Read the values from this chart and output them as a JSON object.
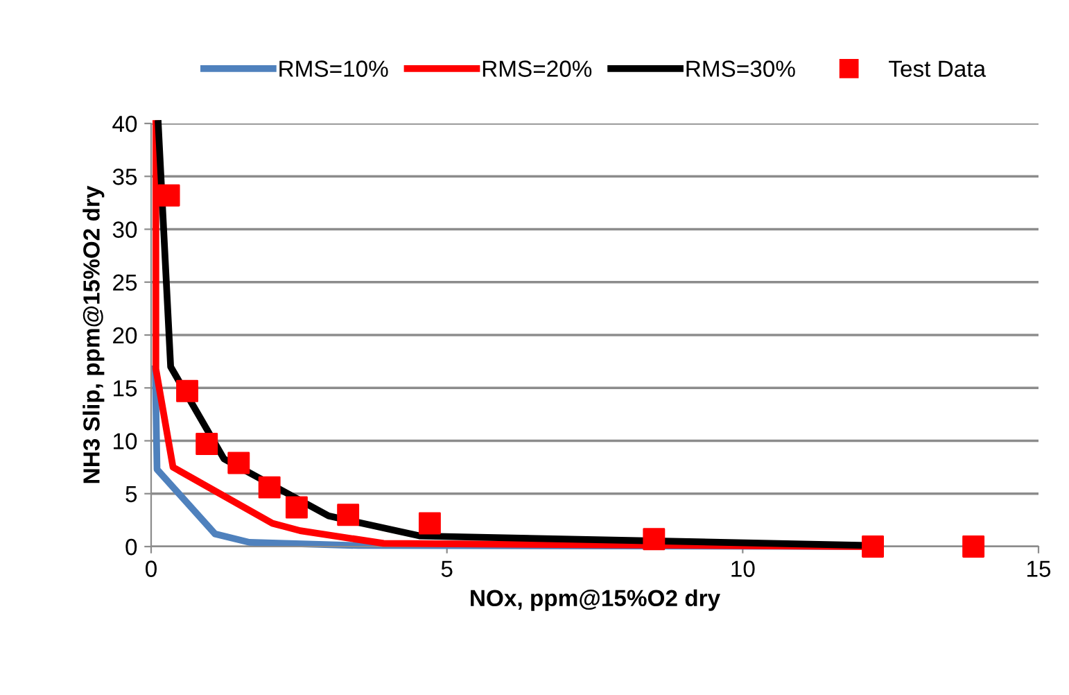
{
  "chart_data": {
    "type": "line",
    "xlabel": "NOx, ppm@15%O2 dry",
    "ylabel": "NH3 Slip, ppm@15%O2 dry",
    "xlim": [
      0,
      15
    ],
    "xticks": [
      0,
      5,
      10,
      15
    ],
    "ylim": [
      0,
      40
    ],
    "yticks": [
      0,
      5,
      10,
      15,
      20,
      25,
      30,
      35,
      40
    ],
    "grid": "y",
    "legend": "top",
    "series": [
      {
        "name": "RMS=10%",
        "color": "#4f81bd",
        "x": [
          0.07,
          0.1,
          1.08,
          1.66,
          3.5,
          12.2
        ],
        "values": [
          16.8,
          7.3,
          1.2,
          0.4,
          0.1,
          0
        ]
      },
      {
        "name": "RMS=20%",
        "color": "#ff0000",
        "x": [
          0.08,
          0.08,
          0.37,
          2.05,
          2.52,
          3.93,
          12.2
        ],
        "values": [
          40,
          16.8,
          7.5,
          2.2,
          1.5,
          0.3,
          0
        ]
      },
      {
        "name": "RMS=30%",
        "color": "#000000",
        "x": [
          0.12,
          0.33,
          1.23,
          3.0,
          4.55,
          12.2
        ],
        "values": [
          40,
          17,
          8.3,
          2.9,
          1.0,
          0.1
        ]
      },
      {
        "name": "Test Data",
        "type": "scatter",
        "marker": "square",
        "color": "#ff0000",
        "x": [
          0.3,
          0.61,
          0.94,
          1.48,
          2.0,
          2.46,
          3.33,
          4.71,
          8.5,
          12.2,
          13.9
        ],
        "values": [
          33.2,
          14.7,
          9.7,
          7.9,
          5.6,
          3.7,
          3.0,
          2.2,
          0.7,
          0,
          0
        ]
      }
    ]
  }
}
